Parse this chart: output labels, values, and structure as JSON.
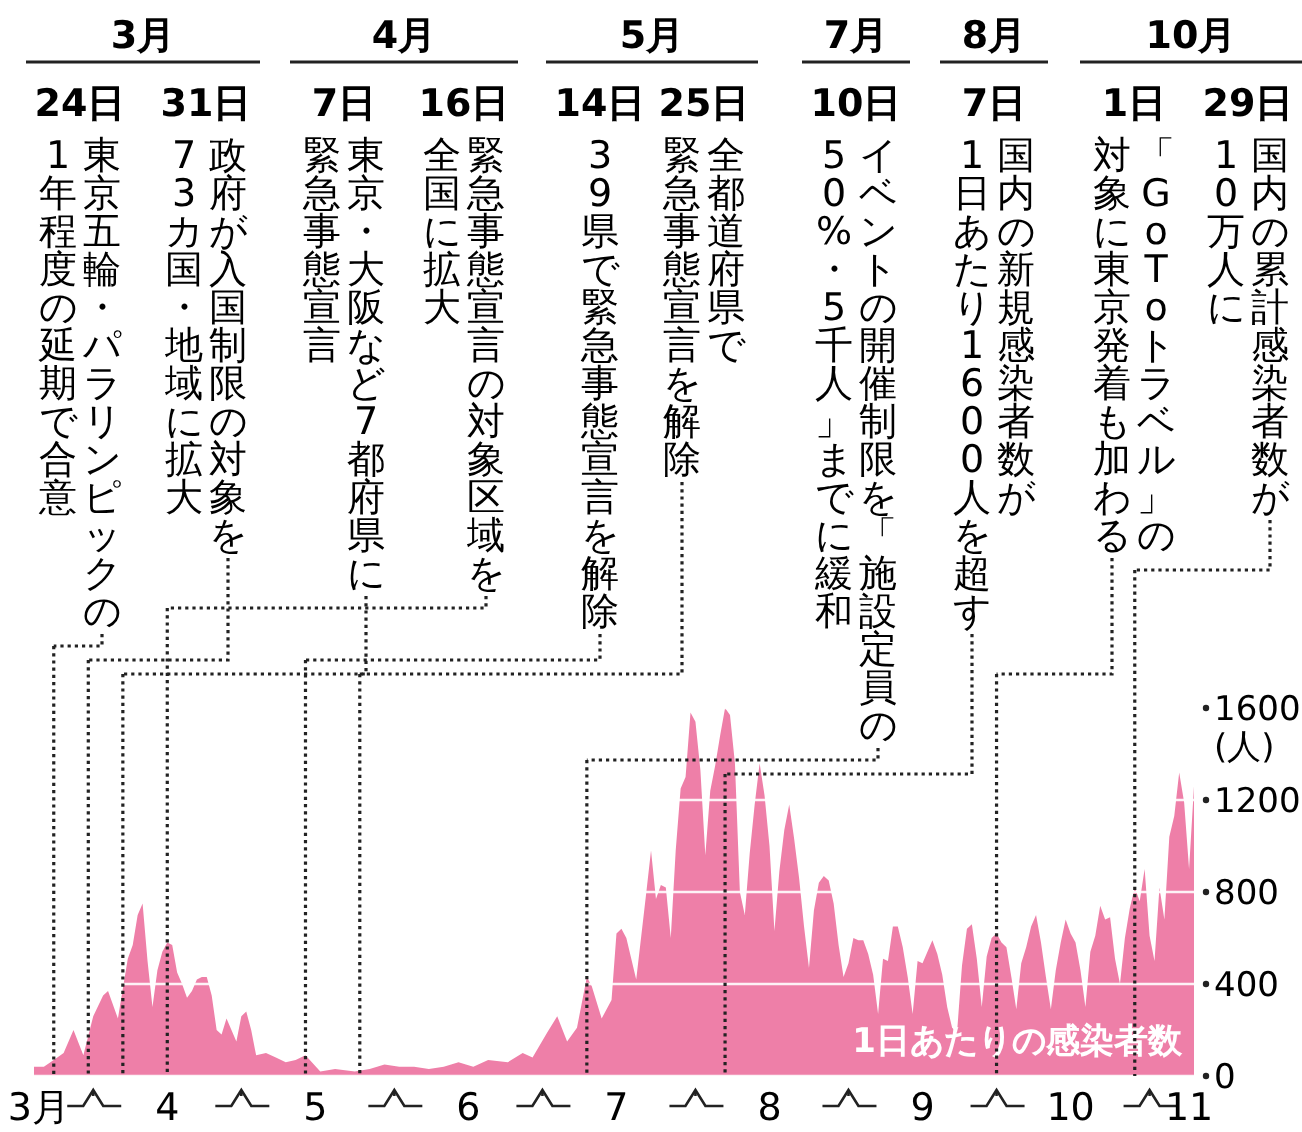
{
  "chart_data": {
    "type": "area",
    "ylabel": "(人)",
    "xlim": [
      "--03-20",
      "--11-10"
    ],
    "xticks": [
      {
        "value": "--03-21",
        "label": "3月"
      },
      {
        "value": "--04-01",
        "label": null
      },
      {
        "value": "--04-16",
        "label": "4"
      },
      {
        "value": "--05-01",
        "label": null
      },
      {
        "value": "--05-16",
        "label": "5"
      },
      {
        "value": "--06-01",
        "label": null
      },
      {
        "value": "--06-16",
        "label": "6"
      },
      {
        "value": "--07-01",
        "label": null
      },
      {
        "value": "--07-16",
        "label": "7"
      },
      {
        "value": "--08-01",
        "label": null
      },
      {
        "value": "--08-16",
        "label": "8"
      },
      {
        "value": "--09-01",
        "label": null
      },
      {
        "value": "--09-16",
        "label": "9"
      },
      {
        "value": "--10-01",
        "label": null
      },
      {
        "value": "--10-16",
        "label": "10"
      },
      {
        "value": "--11-01",
        "label": null
      },
      {
        "value": "--11-09",
        "label": "11"
      }
    ],
    "ylim": [
      0,
      1600
    ],
    "yticks": [
      0,
      400,
      800,
      1200,
      1600
    ],
    "grid": "y",
    "series": [
      {
        "name": "1日あたりの感染者数",
        "color": "#ee7fa8",
        "x": [
          "--03-20",
          "--03-22",
          "--03-24",
          "--03-26",
          "--03-28",
          "--03-30",
          "--04-01",
          "--04-03",
          "--04-04",
          "--04-06",
          "--04-08",
          "--04-09",
          "--04-10",
          "--04-11",
          "--04-12",
          "--04-13",
          "--04-14",
          "--04-15",
          "--04-16",
          "--04-17",
          "--04-18",
          "--04-19",
          "--04-20",
          "--04-21",
          "--04-22",
          "--04-23",
          "--04-24",
          "--04-25",
          "--04-26",
          "--04-27",
          "--04-28",
          "--04-29",
          "--04-30",
          "--05-01",
          "--05-02",
          "--05-03",
          "--05-04",
          "--05-06",
          "--05-08",
          "--05-10",
          "--05-12",
          "--05-14",
          "--05-17",
          "--05-20",
          "--05-24",
          "--05-27",
          "--05-30",
          "--06-02",
          "--06-05",
          "--06-08",
          "--06-11",
          "--06-14",
          "--06-17",
          "--06-20",
          "--06-24",
          "--06-27",
          "--06-29",
          "--07-02",
          "--07-04",
          "--07-06",
          "--07-08",
          "--07-10",
          "--07-11",
          "--07-13",
          "--07-15",
          "--07-16",
          "--07-17",
          "--07-18",
          "--07-20",
          "--07-22",
          "--07-23",
          "--07-24",
          "--07-25",
          "--07-26",
          "--07-27",
          "--07-28",
          "--07-29",
          "--07-30",
          "--07-31",
          "--08-01",
          "--08-02",
          "--08-03",
          "--08-04",
          "--08-05",
          "--08-06",
          "--08-07",
          "--08-08",
          "--08-09",
          "--08-10",
          "--08-11",
          "--08-12",
          "--08-13",
          "--08-14",
          "--08-15",
          "--08-16",
          "--08-17",
          "--08-18",
          "--08-19",
          "--08-20",
          "--08-21",
          "--08-22",
          "--08-23",
          "--08-24",
          "--08-25",
          "--08-26",
          "--08-27",
          "--08-28",
          "--08-29",
          "--08-30",
          "--08-31",
          "--09-01",
          "--09-02",
          "--09-03",
          "--09-04",
          "--09-05",
          "--09-06",
          "--09-07",
          "--09-08",
          "--09-09",
          "--09-10",
          "--09-11",
          "--09-12",
          "--09-13",
          "--09-14",
          "--09-15",
          "--09-16",
          "--09-17",
          "--09-18",
          "--09-19",
          "--09-20",
          "--09-21",
          "--09-22",
          "--09-23",
          "--09-24",
          "--09-25",
          "--09-26",
          "--09-27",
          "--09-28",
          "--09-29",
          "--09-30",
          "--10-01",
          "--10-02",
          "--10-03",
          "--10-04",
          "--10-05",
          "--10-06",
          "--10-07",
          "--10-08",
          "--10-09",
          "--10-10",
          "--10-11",
          "--10-12",
          "--10-13",
          "--10-14",
          "--10-15",
          "--10-16",
          "--10-17",
          "--10-18",
          "--10-19",
          "--10-20",
          "--10-21",
          "--10-22",
          "--10-23",
          "--10-24",
          "--10-25",
          "--10-26",
          "--10-27",
          "--10-28",
          "--10-29",
          "--10-30",
          "--10-31",
          "--11-01",
          "--11-02",
          "--11-03",
          "--11-04",
          "--11-05",
          "--11-06",
          "--11-07",
          "--11-08",
          "--11-09",
          "--11-10"
        ],
        "values": [
          40,
          40,
          70,
          100,
          200,
          90,
          260,
          350,
          370,
          250,
          510,
          570,
          700,
          750,
          500,
          300,
          460,
          540,
          580,
          570,
          450,
          400,
          340,
          370,
          420,
          430,
          430,
          350,
          200,
          180,
          250,
          200,
          150,
          260,
          280,
          200,
          90,
          100,
          80,
          60,
          70,
          90,
          20,
          30,
          20,
          30,
          50,
          40,
          40,
          30,
          40,
          60,
          40,
          70,
          60,
          100,
          80,
          190,
          260,
          150,
          210,
          430,
          390,
          250,
          330,
          620,
          640,
          600,
          420,
          790,
          980,
          770,
          830,
          820,
          600,
          980,
          1250,
          1300,
          1580,
          1540,
          1330,
          960,
          1240,
          1350,
          1480,
          1600,
          1570,
          1360,
          800,
          700,
          970,
          1180,
          1360,
          1220,
          1000,
          630,
          890,
          1070,
          1180,
          1030,
          860,
          650,
          470,
          720,
          840,
          870,
          850,
          750,
          570,
          430,
          490,
          600,
          590,
          590,
          530,
          440,
          270,
          510,
          500,
          650,
          650,
          560,
          430,
          270,
          500,
          490,
          540,
          590,
          530,
          440,
          300,
          210,
          190,
          480,
          640,
          660,
          510,
          300,
          520,
          600,
          620,
          580,
          560,
          430,
          290,
          490,
          560,
          650,
          700,
          580,
          430,
          290,
          460,
          580,
          680,
          620,
          580,
          460,
          300,
          540,
          610,
          740,
          680,
          690,
          510,
          400,
          600,
          730,
          820,
          760,
          900,
          610,
          500,
          820,
          680,
          1040,
          1130,
          1320,
          1190,
          900,
          1260
        ]
      }
    ],
    "annotations": [
      "3月",
      "4月",
      "5月",
      "7月",
      "8月",
      "10月",
      "24日",
      "東京五輪・パラリンピックの",
      "1年程度の延期で合意",
      "31日",
      "政府が入国制限の対象を",
      "73カ国・地域に拡大",
      "7日",
      "東京・大阪など7都府県に",
      "緊急事態宣言",
      "16日",
      "緊急事態宣言の対象区域を",
      "全国に拡大",
      "14日",
      "39県で緊急事態宣言を解除",
      "25日",
      "全都道府県で",
      "緊急事態宣言を解除",
      "10日",
      "イベントの開催制限を「施設定員の",
      "50%・5千人」までに緩和",
      "7日",
      "国内の新規感染者数が",
      "1日あたり1600人を超す",
      "1日",
      "「GoToトラベル」の",
      "対象に東京発着も加わる",
      "29日",
      "国内の累計感染者数が",
      "10万人に"
    ],
    "ref_lines": [
      {
        "axis": "x",
        "value": "--03-24",
        "color": "#222222",
        "line_style": "dotted"
      },
      {
        "axis": "x",
        "value": "--03-31",
        "color": "#222222",
        "line_style": "dotted"
      },
      {
        "axis": "x",
        "value": "--04-07",
        "color": "#222222",
        "line_style": "dotted"
      },
      {
        "axis": "x",
        "value": "--04-16",
        "color": "#222222",
        "line_style": "dotted"
      },
      {
        "axis": "x",
        "value": "--05-14",
        "color": "#222222",
        "line_style": "dotted"
      },
      {
        "axis": "x",
        "value": "--05-25",
        "color": "#222222",
        "line_style": "dotted"
      },
      {
        "axis": "x",
        "value": "--07-10",
        "color": "#222222",
        "line_style": "dotted"
      },
      {
        "axis": "x",
        "value": "--08-07",
        "color": "#222222",
        "line_style": "dotted"
      },
      {
        "axis": "x",
        "value": "--10-01",
        "color": "#222222",
        "line_style": "dotted"
      },
      {
        "axis": "x",
        "value": "--10-29",
        "color": "#222222",
        "line_style": "dotted"
      }
    ]
  }
}
